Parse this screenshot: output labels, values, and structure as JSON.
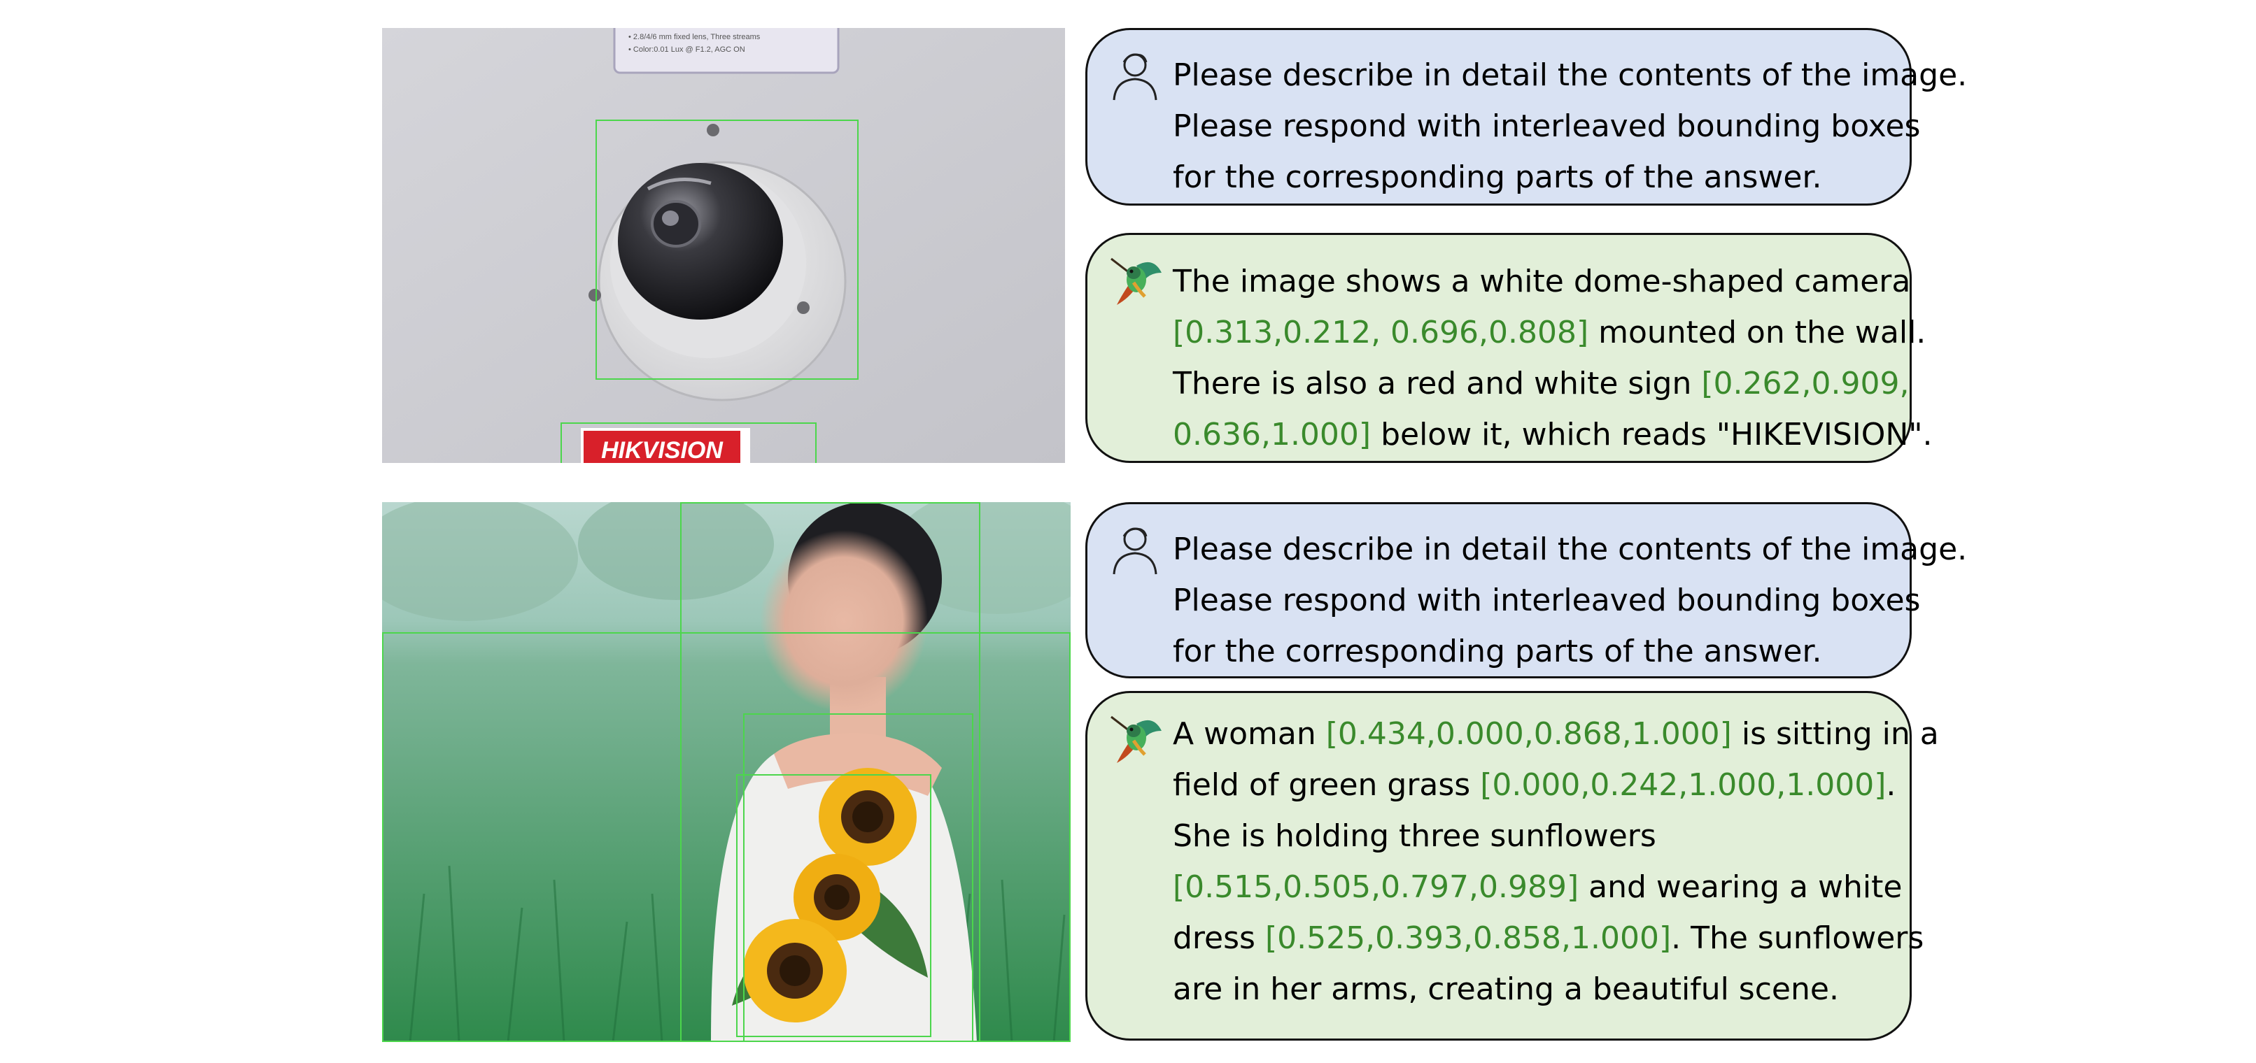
{
  "colors": {
    "user_bubble": "#d9e2f3",
    "assistant_bubble": "#e2efd9",
    "bbox_text": "#3a8a2c",
    "bbox_outline": "#4cd64c"
  },
  "icons": {
    "user": "user-avatar-icon",
    "assistant": "hummingbird-icon"
  },
  "example1": {
    "image": {
      "sign_text": "HIKVISION",
      "label_line1": "• 2.8/4/6 mm fixed lens, Three streams",
      "label_line2": "• Color:0.01 Lux @ F1.2, AGC ON"
    },
    "user": {
      "lines": [
        "Please describe in detail the contents of the image.",
        "Please respond with interleaved bounding boxes",
        "for the corresponding parts of the answer."
      ]
    },
    "assistant": {
      "l1": "The image shows a white dome-shaped camera",
      "l2_box": "[0.313,0.212, 0.696,0.808]",
      "l2_text": " mounted on the wall.",
      "l3_text": "There is also a red and white sign ",
      "l3_box": "[0.262,0.909,",
      "l4_box": "0.636,1.000]",
      "l4_text": " below it, which reads \"HIKEVISION\"."
    }
  },
  "example2": {
    "user": {
      "lines": [
        "Please describe in detail the contents of the image.",
        "Please respond with interleaved bounding boxes",
        "for the corresponding parts of the answer."
      ]
    },
    "assistant": {
      "l1_text": "A woman ",
      "l1_box": "[0.434,0.000,0.868,1.000]",
      "l1_end": " is sitting in a",
      "l2_text": "field of green grass ",
      "l2_box": "[0.000,0.242,1.000,1.000]",
      "l2_end": ".",
      "l3_text": "She is holding three sunflowers",
      "l4_box": "[0.515,0.505,0.797,0.989]",
      "l4_end": " and wearing a white",
      "l5_text": "dress ",
      "l5_box": "[0.525,0.393,0.858,1.000]",
      "l5_end": ". The sunflowers",
      "l6_text": "are in her arms, creating a beautiful scene."
    }
  }
}
